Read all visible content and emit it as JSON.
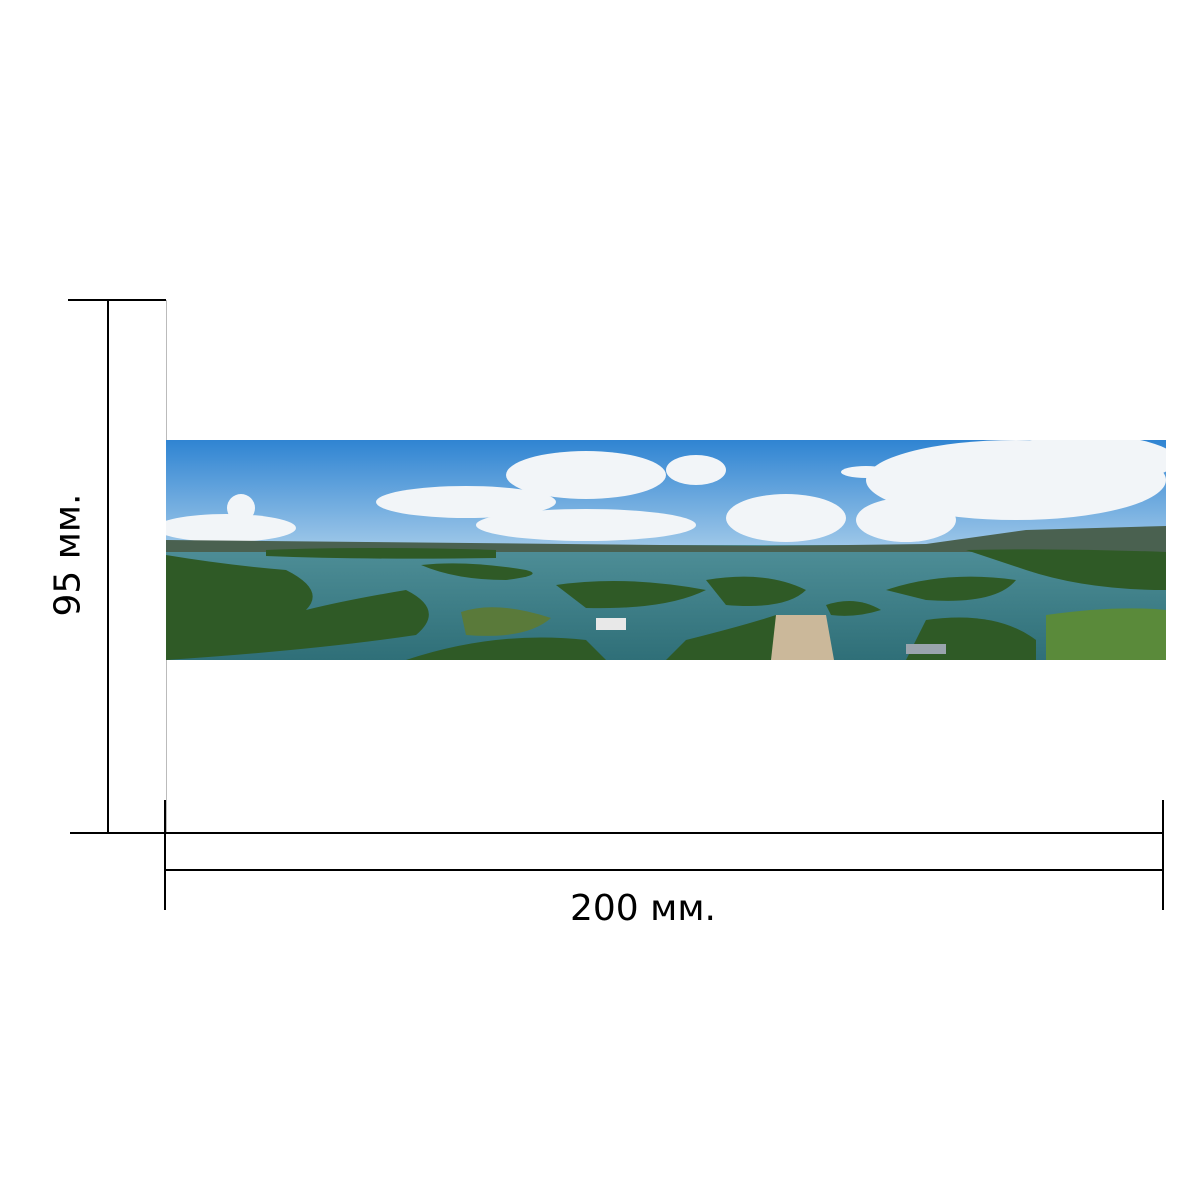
{
  "dimensions": {
    "width_label": "200 мм.",
    "height_label": "95 мм."
  },
  "image": {
    "subject": "panoramic-lake-islands",
    "colors": {
      "sky": "#3d8fd6",
      "water": "#3f8a8a",
      "forest": "#2f5a26"
    }
  }
}
